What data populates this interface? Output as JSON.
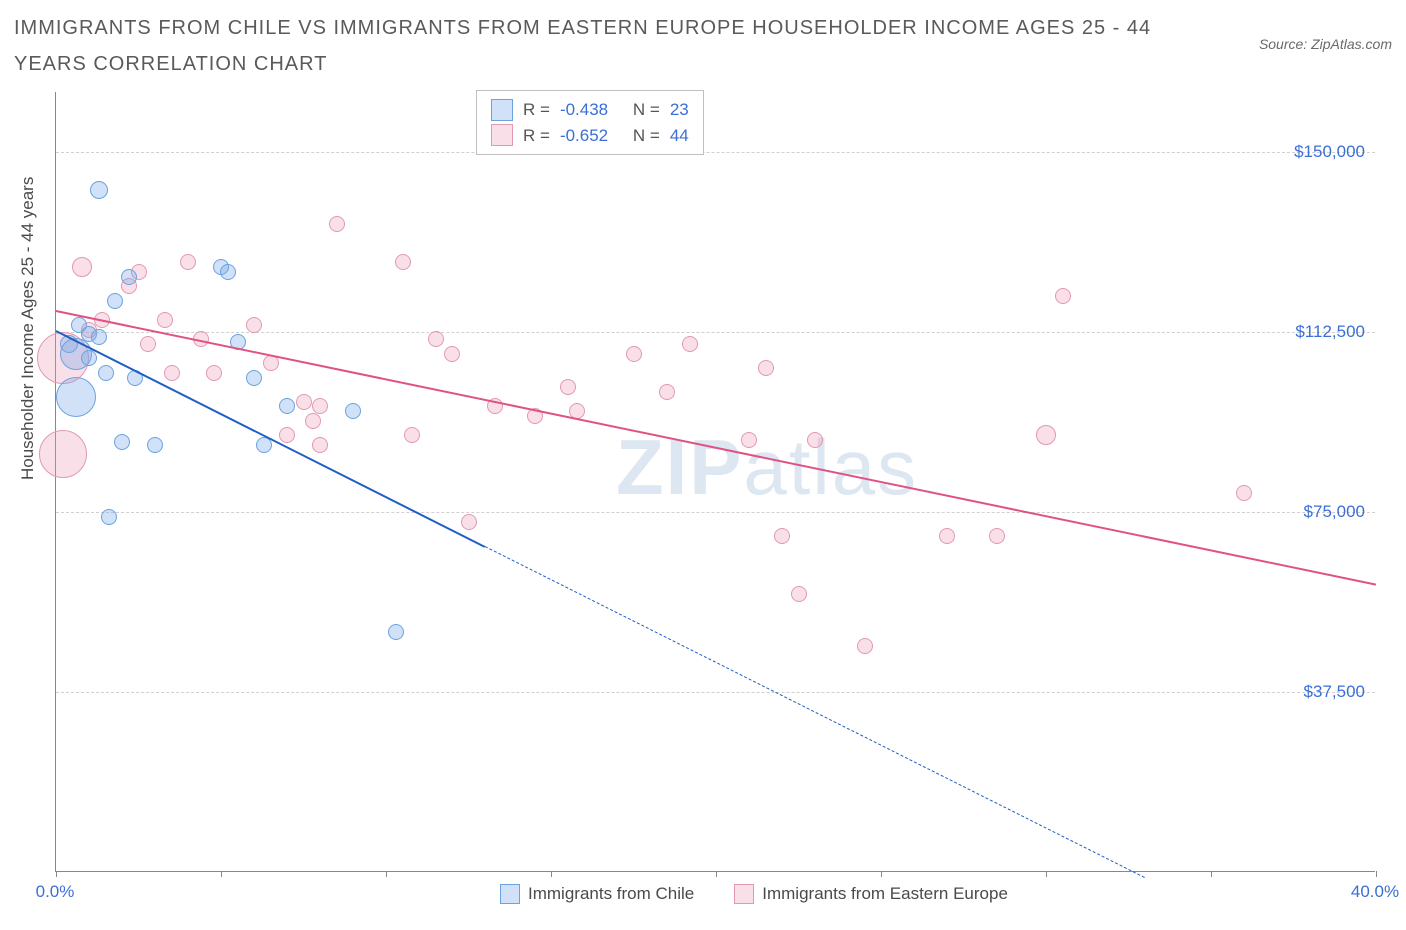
{
  "title": "IMMIGRANTS FROM CHILE VS IMMIGRANTS FROM EASTERN EUROPE HOUSEHOLDER INCOME AGES 25 - 44 YEARS CORRELATION CHART",
  "source": "Source: ZipAtlas.com",
  "watermark_bold": "ZIP",
  "watermark_rest": "atlas",
  "y_axis_title": "Householder Income Ages 25 - 44 years",
  "colors": {
    "series_a_fill": "rgba(120,170,235,0.35)",
    "series_a_stroke": "#6aa3e0",
    "series_a_line": "#1f5fc4",
    "series_b_fill": "rgba(235,150,180,0.30)",
    "series_b_stroke": "#e398b2",
    "series_b_line": "#e05284",
    "tick_text": "#3b6fd6",
    "grid": "#d0d0d0"
  },
  "xlim": [
    0,
    40
  ],
  "ylim": [
    0,
    162500
  ],
  "xticks": [
    0,
    5,
    10,
    15,
    20,
    25,
    30,
    35,
    40
  ],
  "xtick_labels_shown": {
    "0": "0.0%",
    "40": "40.0%"
  },
  "yticks": [
    37500,
    75000,
    112500,
    150000
  ],
  "ytick_labels": [
    "$37,500",
    "$75,000",
    "$112,500",
    "$150,000"
  ],
  "stats": {
    "a": {
      "R_label": "R =",
      "R": "-0.438",
      "N_label": "N =",
      "N": "23"
    },
    "b": {
      "R_label": "R =",
      "R": "-0.652",
      "N_label": "N =",
      "N": "44"
    }
  },
  "legend": {
    "a": "Immigrants from Chile",
    "b": "Immigrants from Eastern Europe"
  },
  "series_a": {
    "points": [
      {
        "x": 0.4,
        "y": 110000,
        "r": 9
      },
      {
        "x": 0.6,
        "y": 108000,
        "r": 16
      },
      {
        "x": 0.6,
        "y": 99000,
        "r": 20
      },
      {
        "x": 0.7,
        "y": 114000,
        "r": 8
      },
      {
        "x": 1.0,
        "y": 112000,
        "r": 8
      },
      {
        "x": 1.0,
        "y": 107000,
        "r": 8
      },
      {
        "x": 1.3,
        "y": 111500,
        "r": 8
      },
      {
        "x": 1.3,
        "y": 142000,
        "r": 9
      },
      {
        "x": 1.5,
        "y": 104000,
        "r": 8
      },
      {
        "x": 1.8,
        "y": 119000,
        "r": 8
      },
      {
        "x": 2.0,
        "y": 89500,
        "r": 8
      },
      {
        "x": 2.2,
        "y": 124000,
        "r": 8
      },
      {
        "x": 2.4,
        "y": 103000,
        "r": 8
      },
      {
        "x": 3.0,
        "y": 89000,
        "r": 8
      },
      {
        "x": 1.6,
        "y": 74000,
        "r": 8
      },
      {
        "x": 5.0,
        "y": 126000,
        "r": 8
      },
      {
        "x": 5.2,
        "y": 125000,
        "r": 8
      },
      {
        "x": 5.5,
        "y": 110500,
        "r": 8
      },
      {
        "x": 6.0,
        "y": 103000,
        "r": 8
      },
      {
        "x": 7.0,
        "y": 97000,
        "r": 8
      },
      {
        "x": 9.0,
        "y": 96000,
        "r": 8
      },
      {
        "x": 10.3,
        "y": 50000,
        "r": 8
      },
      {
        "x": 6.3,
        "y": 89000,
        "r": 8
      }
    ],
    "trend": {
      "x1": 0,
      "y1": 113000,
      "x2": 13,
      "y2": 68000,
      "dash_to_x": 33,
      "dash_to_y": -1000
    }
  },
  "series_b": {
    "points": [
      {
        "x": 0.2,
        "y": 107000,
        "r": 26
      },
      {
        "x": 0.2,
        "y": 87000,
        "r": 24
      },
      {
        "x": 0.8,
        "y": 126000,
        "r": 10
      },
      {
        "x": 1.0,
        "y": 113000,
        "r": 8
      },
      {
        "x": 1.4,
        "y": 115000,
        "r": 8
      },
      {
        "x": 2.2,
        "y": 122000,
        "r": 8
      },
      {
        "x": 2.5,
        "y": 125000,
        "r": 8
      },
      {
        "x": 2.8,
        "y": 110000,
        "r": 8
      },
      {
        "x": 3.3,
        "y": 115000,
        "r": 8
      },
      {
        "x": 3.5,
        "y": 104000,
        "r": 8
      },
      {
        "x": 4.0,
        "y": 127000,
        "r": 8
      },
      {
        "x": 4.4,
        "y": 111000,
        "r": 8
      },
      {
        "x": 4.8,
        "y": 104000,
        "r": 8
      },
      {
        "x": 6.0,
        "y": 114000,
        "r": 8
      },
      {
        "x": 6.5,
        "y": 106000,
        "r": 8
      },
      {
        "x": 7.0,
        "y": 91000,
        "r": 8
      },
      {
        "x": 7.5,
        "y": 98000,
        "r": 8
      },
      {
        "x": 7.8,
        "y": 94000,
        "r": 8
      },
      {
        "x": 8.0,
        "y": 97000,
        "r": 8
      },
      {
        "x": 8.0,
        "y": 89000,
        "r": 8
      },
      {
        "x": 8.5,
        "y": 135000,
        "r": 8
      },
      {
        "x": 10.5,
        "y": 127000,
        "r": 8
      },
      {
        "x": 10.8,
        "y": 91000,
        "r": 8
      },
      {
        "x": 11.5,
        "y": 111000,
        "r": 8
      },
      {
        "x": 12.0,
        "y": 108000,
        "r": 8
      },
      {
        "x": 12.5,
        "y": 73000,
        "r": 8
      },
      {
        "x": 13.3,
        "y": 97000,
        "r": 8
      },
      {
        "x": 14.5,
        "y": 95000,
        "r": 8
      },
      {
        "x": 15.5,
        "y": 101000,
        "r": 8
      },
      {
        "x": 15.8,
        "y": 96000,
        "r": 8
      },
      {
        "x": 17.5,
        "y": 108000,
        "r": 8
      },
      {
        "x": 18.5,
        "y": 100000,
        "r": 8
      },
      {
        "x": 19.2,
        "y": 110000,
        "r": 8
      },
      {
        "x": 21.0,
        "y": 90000,
        "r": 8
      },
      {
        "x": 21.5,
        "y": 105000,
        "r": 8
      },
      {
        "x": 22.0,
        "y": 70000,
        "r": 8
      },
      {
        "x": 22.5,
        "y": 58000,
        "r": 8
      },
      {
        "x": 23.0,
        "y": 90000,
        "r": 8
      },
      {
        "x": 24.5,
        "y": 47000,
        "r": 8
      },
      {
        "x": 27.0,
        "y": 70000,
        "r": 8
      },
      {
        "x": 28.5,
        "y": 70000,
        "r": 8
      },
      {
        "x": 30.0,
        "y": 91000,
        "r": 10
      },
      {
        "x": 36.0,
        "y": 79000,
        "r": 8
      },
      {
        "x": 30.5,
        "y": 120000,
        "r": 8
      }
    ],
    "trend": {
      "x1": 0,
      "y1": 117000,
      "x2": 40,
      "y2": 60000
    }
  }
}
